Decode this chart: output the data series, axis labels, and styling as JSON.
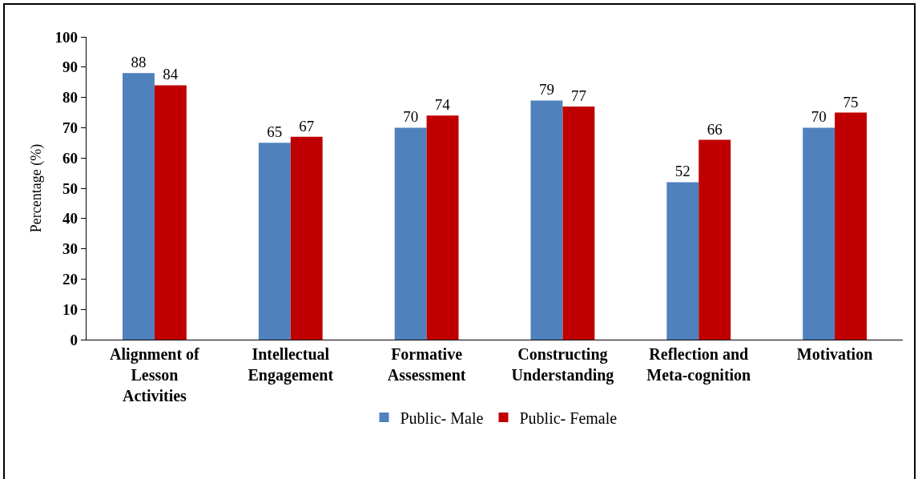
{
  "chart_data": {
    "type": "bar",
    "ylabel": "Percentage (%)",
    "categories": [
      "Alignment of Lesson Activities",
      "Intellectual Engagement",
      "Formative Assessment",
      "Constructing Understanding",
      "Reflection and Meta-cognition",
      "Motivation"
    ],
    "series": [
      {
        "name": "Public- Male",
        "color": "#4f81bd",
        "values": [
          88,
          65,
          70,
          79,
          52,
          70
        ]
      },
      {
        "name": "Public- Female",
        "color": "#c00000",
        "values": [
          84,
          67,
          74,
          77,
          66,
          75
        ]
      }
    ],
    "ylim": [
      0,
      100
    ],
    "yticks": [
      0,
      10,
      20,
      30,
      40,
      50,
      60,
      70,
      80,
      90,
      100
    ],
    "data_labels": true,
    "legend": "bottom"
  }
}
